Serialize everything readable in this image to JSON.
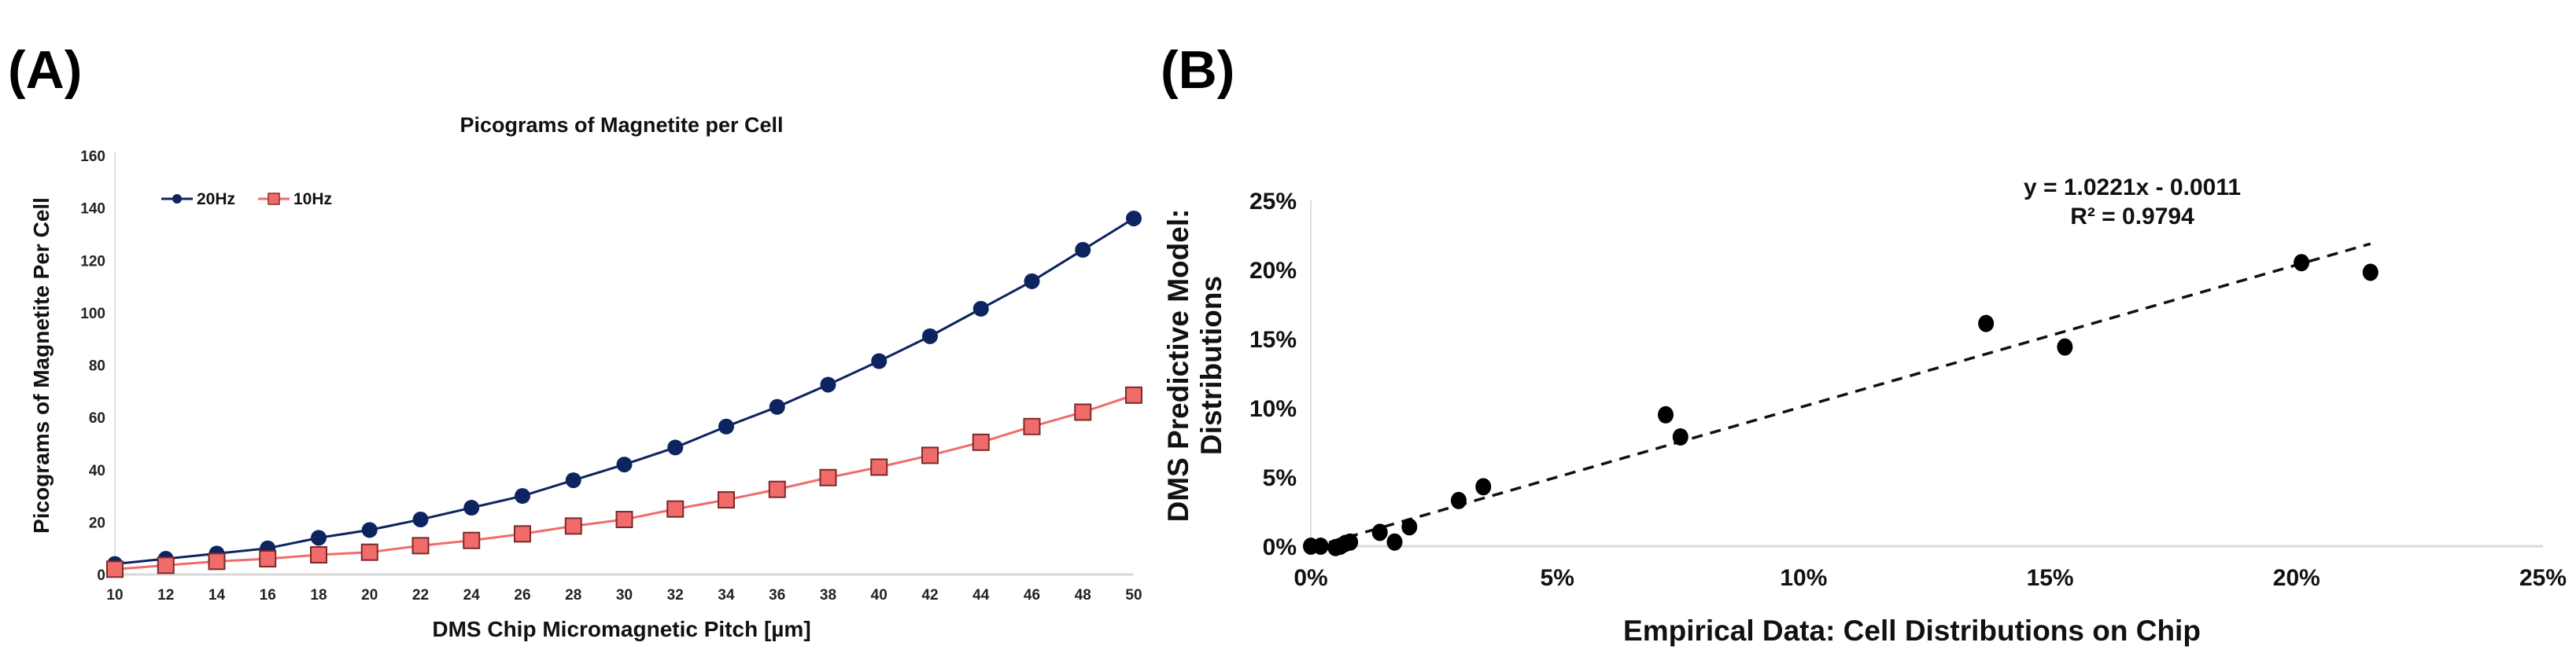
{
  "panels": {
    "a": "(A)",
    "b": "(B)"
  },
  "chart_data": [
    {
      "type": "line",
      "title": "Picograms of Magnetite per Cell",
      "xlabel": "DMS Chip Micromagnetic Pitch [µm]",
      "ylabel": "Picograms of Magnetite Per Cell",
      "x": [
        10,
        12,
        14,
        16,
        18,
        20,
        22,
        24,
        26,
        28,
        30,
        32,
        34,
        36,
        38,
        40,
        42,
        44,
        46,
        48,
        50
      ],
      "xticks": [
        "10",
        "12",
        "14",
        "16",
        "18",
        "20",
        "22",
        "24",
        "26",
        "28",
        "30",
        "32",
        "34",
        "36",
        "38",
        "40",
        "42",
        "44",
        "46",
        "48",
        "50"
      ],
      "ylim": [
        0,
        160
      ],
      "yticks": [
        "0",
        "20",
        "40",
        "60",
        "80",
        "100",
        "120",
        "140",
        "160"
      ],
      "grid": false,
      "legend": "top-left",
      "series": [
        {
          "name": "20Hz",
          "color": "#0d2461",
          "marker": "circle",
          "values": [
            4,
            6,
            8,
            10,
            14,
            17,
            21,
            25.5,
            30,
            36,
            42,
            48.5,
            56.5,
            64,
            72.5,
            81.5,
            91,
            101.5,
            112,
            124,
            136
          ]
        },
        {
          "name": "10Hz",
          "color": "#f26b6b",
          "marker": "square",
          "values": [
            2,
            3.5,
            5,
            6,
            7.5,
            8.5,
            11,
            13,
            15.5,
            18.5,
            21,
            25,
            28.5,
            32.5,
            37,
            41,
            45.5,
            50.5,
            56.5,
            62,
            68.5
          ]
        }
      ]
    },
    {
      "type": "scatter",
      "xlabel": "Empirical Data: Cell Distributions on Chip",
      "ylabel": [
        "DMS Predictive Model:",
        "Distributions"
      ],
      "xlim": [
        0,
        25
      ],
      "ylim": [
        0,
        25
      ],
      "xticks": [
        "0%",
        "5%",
        "10%",
        "15%",
        "20%",
        "25%"
      ],
      "yticks": [
        "0%",
        "5%",
        "10%",
        "15%",
        "20%",
        "25%"
      ],
      "grid": false,
      "points": [
        [
          0,
          0
        ],
        [
          0.2,
          0
        ],
        [
          0.5,
          -0.1
        ],
        [
          0.6,
          0
        ],
        [
          0.7,
          0.2
        ],
        [
          0.8,
          0.3
        ],
        [
          1.4,
          1.0
        ],
        [
          1.7,
          0.3
        ],
        [
          2.0,
          1.4
        ],
        [
          3.0,
          3.3
        ],
        [
          3.5,
          4.3
        ],
        [
          7.2,
          9.5
        ],
        [
          7.5,
          7.9
        ],
        [
          13.7,
          16.1
        ],
        [
          15.3,
          14.4
        ],
        [
          20.1,
          20.5
        ],
        [
          21.5,
          19.8
        ]
      ],
      "trendline": {
        "slope": 1.0221,
        "intercept": -0.0011,
        "equation": "y = 1.0221x - 0.0011",
        "r2": "R² = 0.9794",
        "style": "dashed"
      }
    }
  ]
}
